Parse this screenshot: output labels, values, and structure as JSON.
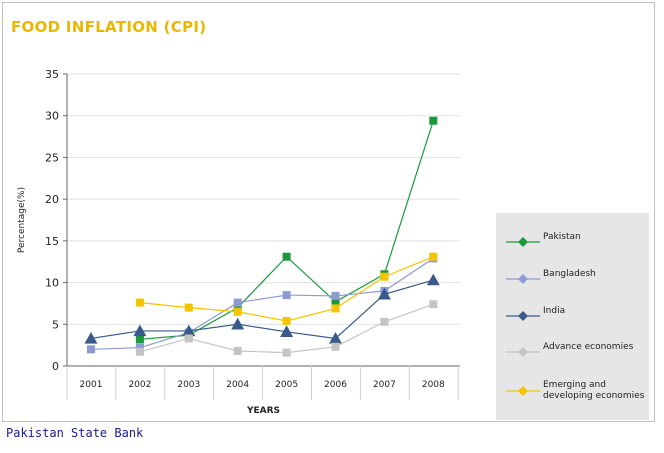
{
  "header": {
    "title": "FOOD INFLATION (CPI)"
  },
  "footer": {
    "source": "Pakistan State Bank"
  },
  "colors": {
    "title": "#e8b800",
    "legend_bg": "#e6e6e6",
    "grid": "#e0e0e0"
  },
  "chart_data": {
    "type": "line",
    "title": "FOOD INFLATION (CPI)",
    "xlabel": "YEARS",
    "ylabel": "Percentage(%)",
    "ylim": [
      0,
      35
    ],
    "yticks": [
      0,
      5,
      10,
      15,
      20,
      25,
      30,
      35
    ],
    "grid": true,
    "legend_position": "right",
    "categories": [
      "2001",
      "2002",
      "2003",
      "2004",
      "2005",
      "2006",
      "2007",
      "2008"
    ],
    "series": [
      {
        "name": "Pakistan",
        "color": "#1a9a3a",
        "marker": "square",
        "values": [
          null,
          3.2,
          3.7,
          7.0,
          13.1,
          7.7,
          11.0,
          29.4
        ]
      },
      {
        "name": "Bangladesh",
        "color": "#8c9ad6",
        "marker": "square",
        "values": [
          2.0,
          2.2,
          4.0,
          7.6,
          8.5,
          8.4,
          9.0,
          12.9
        ]
      },
      {
        "name": "India",
        "color": "#3a5a8c",
        "marker": "triangle",
        "values": [
          3.3,
          4.2,
          4.2,
          5.0,
          4.1,
          3.3,
          8.6,
          10.3
        ]
      },
      {
        "name": "Advance economies",
        "color": "#c4c4c4",
        "marker": "square",
        "values": [
          null,
          1.7,
          3.3,
          1.8,
          1.6,
          2.3,
          5.3,
          7.4
        ]
      },
      {
        "name": "Emerging and developing economies",
        "legend_label": [
          "Emerging and",
          "developing economies"
        ],
        "color": "#f5c400",
        "marker": "square",
        "values": [
          null,
          7.6,
          7.0,
          6.5,
          5.4,
          6.9,
          10.7,
          13.1
        ]
      }
    ]
  }
}
